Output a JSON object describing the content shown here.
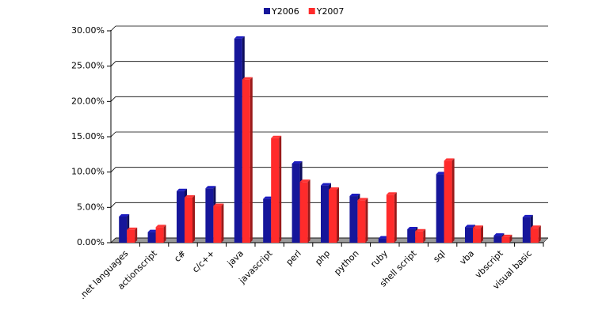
{
  "chart_data": {
    "type": "bar3d",
    "categories": [
      ".net languages",
      "actionscript",
      "c#",
      "c/c++",
      "java",
      "javascript",
      "perl",
      "php",
      "python",
      "ruby",
      "shell script",
      "sql",
      "vba",
      "vbscript",
      "visual basic"
    ],
    "series": [
      {
        "name": "Y2006",
        "color": "#16169a",
        "values": [
          3.7,
          1.5,
          7.3,
          7.7,
          28.9,
          6.2,
          11.2,
          8.1,
          6.6,
          0.6,
          1.9,
          9.7,
          2.2,
          1.0,
          3.6
        ]
      },
      {
        "name": "Y2007",
        "color": "#ff2b2b",
        "values": [
          1.8,
          2.2,
          6.4,
          5.2,
          23.1,
          14.8,
          8.6,
          7.5,
          6.0,
          6.8,
          1.6,
          11.6,
          2.1,
          0.8,
          2.1
        ]
      }
    ],
    "ylim": [
      0,
      30
    ],
    "yticks": [
      {
        "value": 0,
        "label": "0.00%"
      },
      {
        "value": 5,
        "label": "5.00%"
      },
      {
        "value": 10,
        "label": "10.00%"
      },
      {
        "value": 15,
        "label": "15.00%"
      },
      {
        "value": 20,
        "label": "20.00%"
      },
      {
        "value": 25,
        "label": "25.00%"
      },
      {
        "value": 30,
        "label": "30.00%"
      }
    ],
    "grid": true,
    "legend": "top"
  }
}
